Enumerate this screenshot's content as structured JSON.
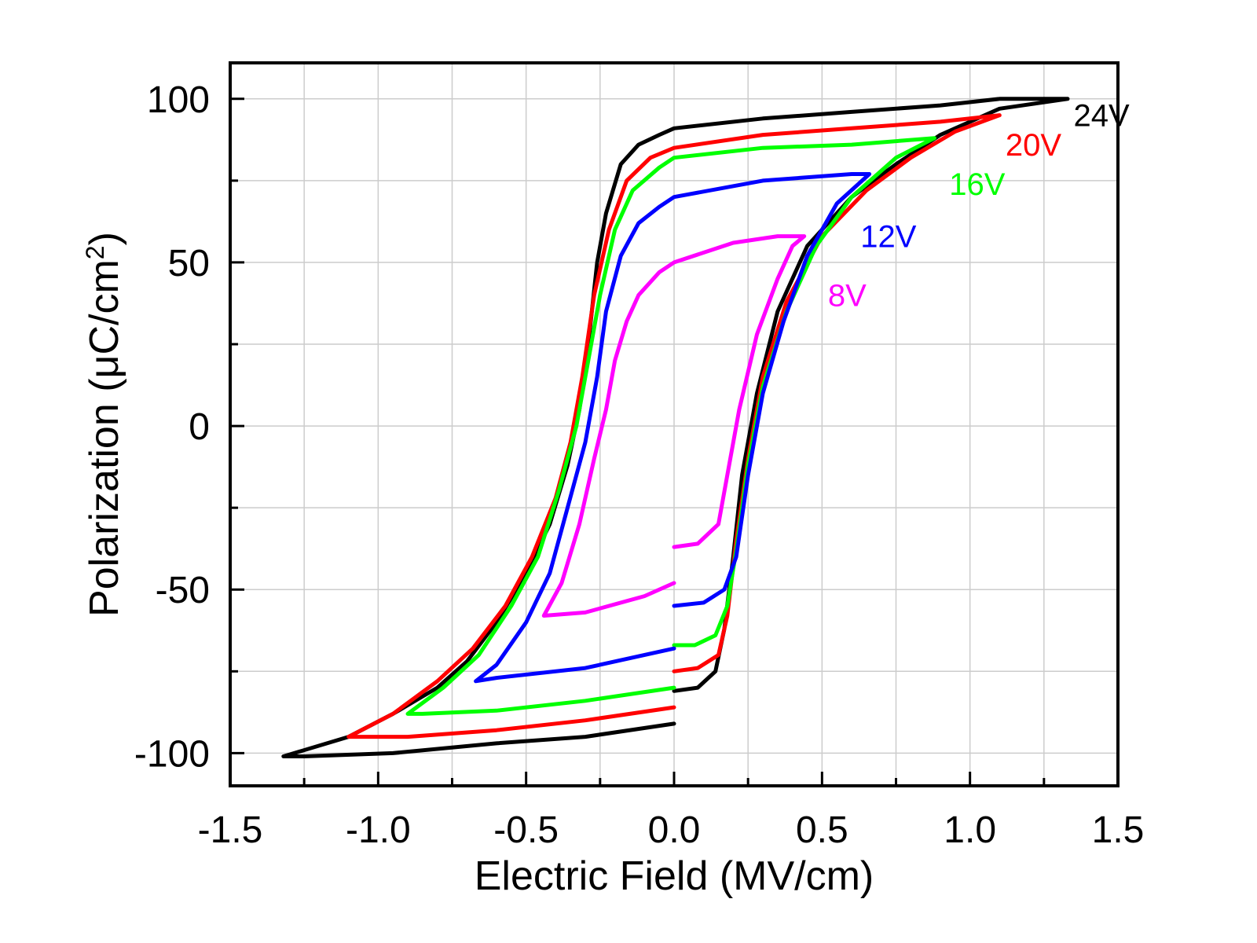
{
  "chart_data": {
    "type": "line",
    "title": "",
    "xlabel": "Electric Field (MV/cm)",
    "ylabel_parts": [
      "Polarization (",
      "μ",
      "C/cm",
      "2",
      ")"
    ],
    "xlim": [
      -1.5,
      1.5
    ],
    "ylim": [
      -110,
      111
    ],
    "xticks": [
      -1.5,
      -1.0,
      -0.5,
      0.0,
      0.5,
      1.0,
      1.5
    ],
    "xtick_labels": [
      "-1.5",
      "-1.0",
      "-0.5",
      "0.0",
      "0.5",
      "1.0",
      "1.5"
    ],
    "yticks": [
      -100,
      -50,
      0,
      50,
      100
    ],
    "ytick_labels": [
      "-100",
      "-50",
      "0",
      "50",
      "100"
    ],
    "grid": true,
    "legend": "inline labels at curve ends",
    "series": [
      {
        "name": "24V",
        "color": "#000000",
        "label_at": [
          1.35,
          95
        ],
        "points": [
          [
            0.0,
            -91
          ],
          [
            -0.3,
            -95
          ],
          [
            -0.6,
            -97
          ],
          [
            -0.95,
            -100
          ],
          [
            -1.25,
            -101
          ],
          [
            -1.32,
            -101
          ],
          [
            -1.1,
            -95
          ],
          [
            -0.95,
            -88
          ],
          [
            -0.8,
            -80
          ],
          [
            -0.7,
            -72
          ],
          [
            -0.6,
            -60
          ],
          [
            -0.5,
            -45
          ],
          [
            -0.42,
            -30
          ],
          [
            -0.36,
            -12
          ],
          [
            -0.32,
            5
          ],
          [
            -0.29,
            25
          ],
          [
            -0.26,
            50
          ],
          [
            -0.23,
            65
          ],
          [
            -0.18,
            80
          ],
          [
            -0.12,
            86
          ],
          [
            -0.05,
            89
          ],
          [
            0.0,
            91
          ],
          [
            0.3,
            94
          ],
          [
            0.6,
            96
          ],
          [
            0.9,
            98
          ],
          [
            1.1,
            100
          ],
          [
            1.33,
            100
          ],
          [
            1.1,
            97
          ],
          [
            0.9,
            89
          ],
          [
            0.75,
            80
          ],
          [
            0.6,
            70
          ],
          [
            0.45,
            55
          ],
          [
            0.35,
            35
          ],
          [
            0.28,
            10
          ],
          [
            0.23,
            -15
          ],
          [
            0.2,
            -40
          ],
          [
            0.17,
            -62
          ],
          [
            0.14,
            -75
          ],
          [
            0.08,
            -80
          ],
          [
            0.0,
            -81
          ]
        ]
      },
      {
        "name": "20V",
        "color": "#ff0000",
        "label_at": [
          1.12,
          86
        ],
        "points": [
          [
            0.0,
            -86
          ],
          [
            -0.3,
            -90
          ],
          [
            -0.6,
            -93
          ],
          [
            -0.9,
            -95
          ],
          [
            -1.1,
            -95
          ],
          [
            -0.95,
            -88
          ],
          [
            -0.8,
            -78
          ],
          [
            -0.68,
            -68
          ],
          [
            -0.57,
            -55
          ],
          [
            -0.48,
            -40
          ],
          [
            -0.4,
            -22
          ],
          [
            -0.35,
            -5
          ],
          [
            -0.31,
            15
          ],
          [
            -0.27,
            40
          ],
          [
            -0.22,
            60
          ],
          [
            -0.16,
            75
          ],
          [
            -0.08,
            82
          ],
          [
            0.0,
            85
          ],
          [
            0.3,
            89
          ],
          [
            0.6,
            91
          ],
          [
            0.9,
            93
          ],
          [
            1.1,
            95
          ],
          [
            0.95,
            90
          ],
          [
            0.8,
            82
          ],
          [
            0.65,
            72
          ],
          [
            0.5,
            58
          ],
          [
            0.38,
            38
          ],
          [
            0.3,
            15
          ],
          [
            0.25,
            -10
          ],
          [
            0.21,
            -35
          ],
          [
            0.18,
            -58
          ],
          [
            0.15,
            -70
          ],
          [
            0.08,
            -74
          ],
          [
            0.0,
            -75
          ]
        ]
      },
      {
        "name": "16V",
        "color": "#00ff00",
        "label_at": [
          0.93,
          74
        ],
        "points": [
          [
            0.0,
            -80
          ],
          [
            -0.3,
            -84
          ],
          [
            -0.6,
            -87
          ],
          [
            -0.85,
            -88
          ],
          [
            -0.9,
            -88
          ],
          [
            -0.78,
            -80
          ],
          [
            -0.66,
            -70
          ],
          [
            -0.55,
            -55
          ],
          [
            -0.46,
            -40
          ],
          [
            -0.39,
            -20
          ],
          [
            -0.33,
            0
          ],
          [
            -0.29,
            20
          ],
          [
            -0.25,
            40
          ],
          [
            -0.2,
            60
          ],
          [
            -0.14,
            72
          ],
          [
            -0.05,
            79
          ],
          [
            0.0,
            82
          ],
          [
            0.3,
            85
          ],
          [
            0.6,
            86
          ],
          [
            0.88,
            88
          ],
          [
            0.75,
            82
          ],
          [
            0.6,
            70
          ],
          [
            0.48,
            55
          ],
          [
            0.38,
            35
          ],
          [
            0.3,
            12
          ],
          [
            0.25,
            -12
          ],
          [
            0.21,
            -38
          ],
          [
            0.18,
            -55
          ],
          [
            0.14,
            -64
          ],
          [
            0.07,
            -67
          ],
          [
            0.0,
            -67
          ]
        ]
      },
      {
        "name": "12V",
        "color": "#0000ff",
        "label_at": [
          0.63,
          58
        ],
        "points": [
          [
            0.0,
            -68
          ],
          [
            -0.3,
            -74
          ],
          [
            -0.6,
            -77
          ],
          [
            -0.67,
            -78
          ],
          [
            -0.6,
            -73
          ],
          [
            -0.5,
            -60
          ],
          [
            -0.42,
            -45
          ],
          [
            -0.36,
            -25
          ],
          [
            -0.3,
            -5
          ],
          [
            -0.26,
            15
          ],
          [
            -0.23,
            35
          ],
          [
            -0.18,
            52
          ],
          [
            -0.12,
            62
          ],
          [
            -0.05,
            67
          ],
          [
            0.0,
            70
          ],
          [
            0.3,
            75
          ],
          [
            0.6,
            77
          ],
          [
            0.66,
            77
          ],
          [
            0.55,
            68
          ],
          [
            0.45,
            52
          ],
          [
            0.37,
            32
          ],
          [
            0.3,
            10
          ],
          [
            0.25,
            -15
          ],
          [
            0.21,
            -40
          ],
          [
            0.17,
            -50
          ],
          [
            0.1,
            -54
          ],
          [
            0.0,
            -55
          ]
        ]
      },
      {
        "name": "8V",
        "color": "#ff00ff",
        "label_at": [
          0.52,
          40
        ],
        "points": [
          [
            0.0,
            -48
          ],
          [
            -0.1,
            -52
          ],
          [
            -0.3,
            -57
          ],
          [
            -0.44,
            -58
          ],
          [
            -0.38,
            -48
          ],
          [
            -0.32,
            -30
          ],
          [
            -0.27,
            -10
          ],
          [
            -0.23,
            5
          ],
          [
            -0.2,
            20
          ],
          [
            -0.16,
            32
          ],
          [
            -0.12,
            40
          ],
          [
            -0.05,
            47
          ],
          [
            0.0,
            50
          ],
          [
            0.2,
            56
          ],
          [
            0.35,
            58
          ],
          [
            0.44,
            58
          ],
          [
            0.4,
            55
          ],
          [
            0.35,
            45
          ],
          [
            0.28,
            28
          ],
          [
            0.22,
            5
          ],
          [
            0.18,
            -15
          ],
          [
            0.15,
            -30
          ],
          [
            0.08,
            -36
          ],
          [
            0.0,
            -37
          ]
        ]
      }
    ]
  }
}
